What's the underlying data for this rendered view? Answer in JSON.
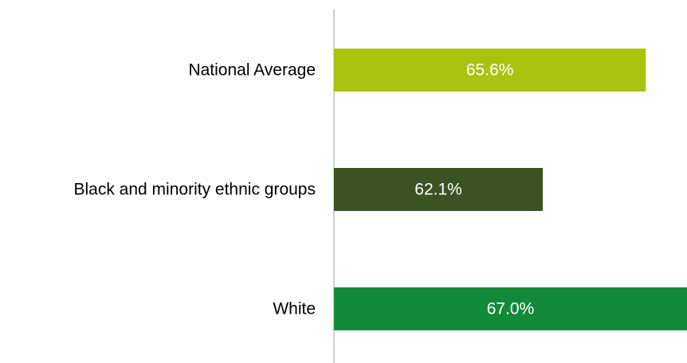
{
  "chart_data": {
    "type": "bar",
    "orientation": "horizontal",
    "categories": [
      "National Average",
      "Black and minority ethnic groups",
      "White"
    ],
    "values": [
      65.6,
      62.1,
      67.0
    ],
    "value_labels": [
      "65.6%",
      "62.1%",
      "67.0%"
    ],
    "colors": [
      "#aac30f",
      "#3b5323",
      "#128a3a"
    ],
    "axis_color": "#d0d0d0",
    "title": "",
    "xlabel": "",
    "ylabel": "",
    "xlim": [
      55,
      67
    ],
    "grid": false,
    "legend": "none"
  }
}
